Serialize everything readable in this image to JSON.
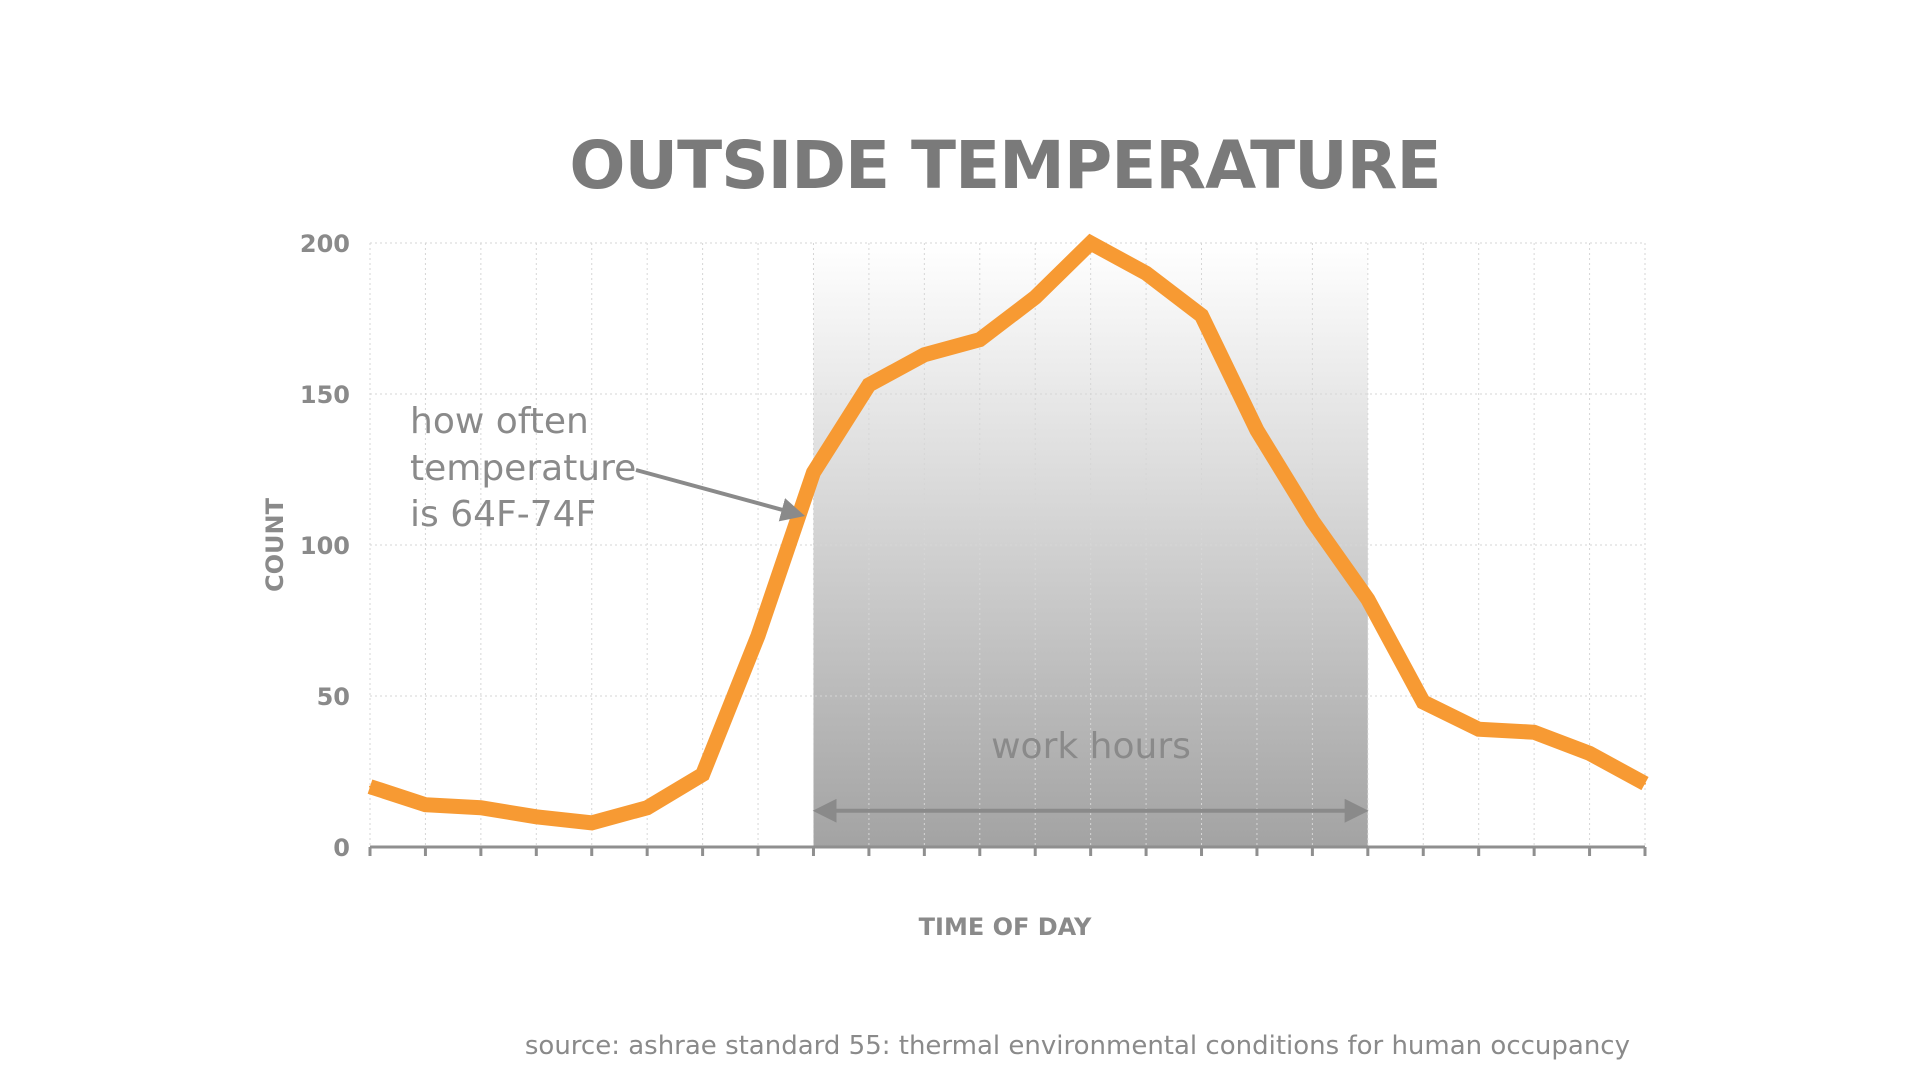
{
  "colors": {
    "line": "#f79a33",
    "text": "#8a8a8a",
    "title": "#7a7a7a",
    "axis": "#8f8f8f",
    "grid": "#d6d6d6",
    "shade_top": "#ffffff",
    "shade_bottom": "#a3a3a3",
    "annotation_arrow": "#8a8a8a"
  },
  "chart_data": {
    "type": "line",
    "title": "OUTSIDE TEMPERATURE",
    "xlabel": "TIME OF DAY",
    "ylabel": "COUNT",
    "ylim": [
      0,
      200
    ],
    "yticks": [
      0,
      50,
      100,
      150,
      200
    ],
    "x_hours": [
      0,
      1,
      2,
      3,
      4,
      5,
      6,
      7,
      8,
      9,
      10,
      11,
      12,
      13,
      14,
      15,
      16,
      17,
      18,
      19,
      20,
      21,
      22,
      23
    ],
    "xlim": [
      0,
      23
    ],
    "grid": {
      "vertical": true,
      "horizontal": true
    },
    "series": [
      {
        "x": [
          0,
          1,
          2,
          3,
          4,
          5,
          6,
          7,
          8,
          9,
          10,
          11,
          12,
          13,
          14,
          15,
          16,
          17,
          18,
          19,
          20,
          21,
          22,
          23
        ],
        "values": [
          20,
          14,
          13,
          10,
          8,
          13,
          24,
          70,
          124,
          153,
          163,
          168,
          182,
          200,
          190,
          176,
          138,
          108,
          82,
          48,
          39,
          38,
          31,
          21
        ]
      }
    ],
    "shaded_region": {
      "x_start": 8,
      "x_end": 18,
      "label": "work hours"
    },
    "annotations": [
      {
        "lines": [
          "how often",
          "temperature",
          "is 64F-74F"
        ],
        "points_to_x": 7.8,
        "points_to_y": 110
      }
    ],
    "source": "source: ashrae standard 55:  thermal environmental conditions for human occupancy"
  }
}
